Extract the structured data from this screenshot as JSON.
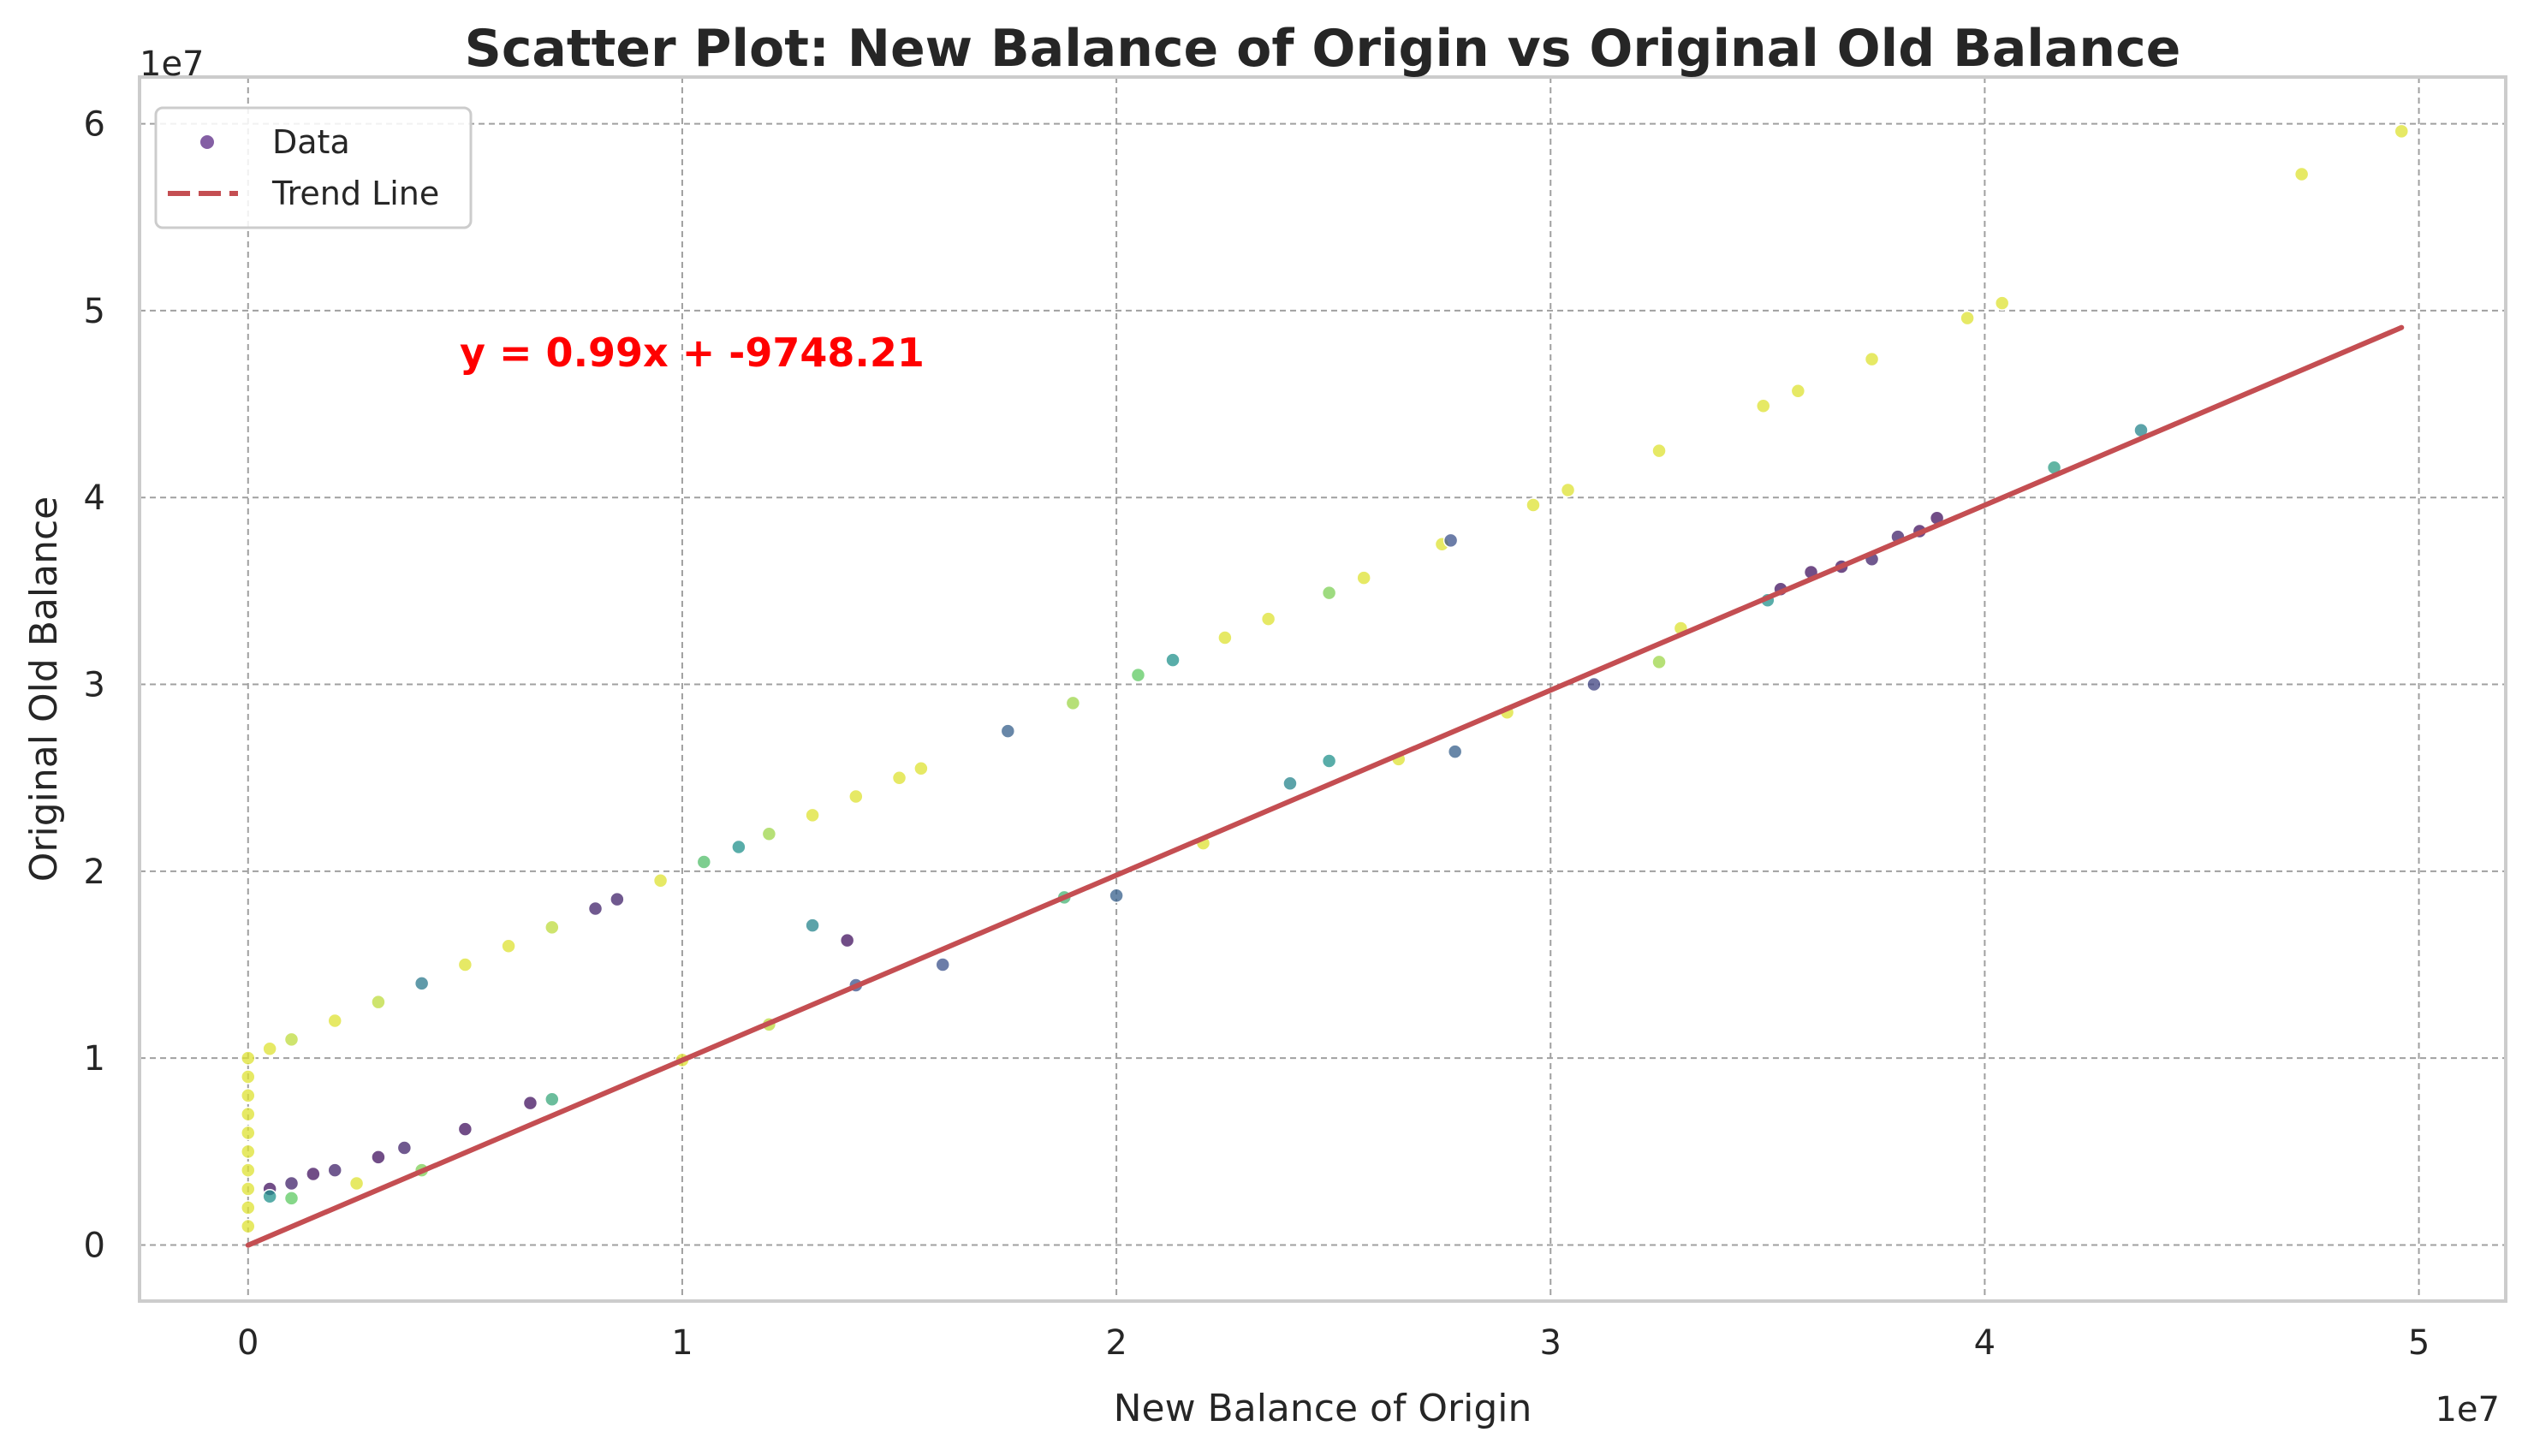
{
  "chart_data": {
    "type": "scatter",
    "title": "Scatter Plot: New Balance of Origin vs Original Old Balance",
    "xlabel": "New Balance of Origin",
    "ylabel": "Original Old Balance",
    "x_offset_text": "1e7",
    "y_offset_text": "1e7",
    "xlim": [
      -2500000,
      52000000
    ],
    "ylim": [
      -3000000,
      62500000
    ],
    "x_ticks": [
      0,
      10000000,
      20000000,
      30000000,
      40000000,
      50000000
    ],
    "x_tick_labels": [
      "0",
      "1",
      "2",
      "3",
      "4",
      "5"
    ],
    "y_ticks": [
      0,
      10000000,
      20000000,
      30000000,
      40000000,
      50000000,
      60000000
    ],
    "y_tick_labels": [
      "0",
      "1",
      "2",
      "3",
      "4",
      "5",
      "6"
    ],
    "grid": true,
    "legend_position": "upper-left",
    "legend": [
      {
        "label": "Data",
        "marker": "circle",
        "color": "#5b2a86"
      },
      {
        "label": "Trend Line",
        "marker": "dashed-line",
        "color": "#c44e52"
      }
    ],
    "annotation": "y = 0.99x + -9748.21",
    "trend_line": {
      "slope": 0.99,
      "intercept": -9748.21,
      "x_range": [
        0,
        49600000
      ],
      "color": "#c44e52"
    },
    "colormap": [
      "#440154",
      "#3b528b",
      "#21918c",
      "#5ec962",
      "#fde725"
    ],
    "series": [
      {
        "name": "Data",
        "points": [
          [
            0,
            10000000,
            0.95
          ],
          [
            0,
            9000000,
            0.95
          ],
          [
            0,
            8000000,
            0.95
          ],
          [
            0,
            7000000,
            0.95
          ],
          [
            0,
            6000000,
            0.95
          ],
          [
            0,
            5000000,
            0.95
          ],
          [
            0,
            4000000,
            0.95
          ],
          [
            0,
            3000000,
            0.95
          ],
          [
            0,
            2000000,
            0.95
          ],
          [
            0,
            1000000,
            0.95
          ],
          [
            500000,
            10500000,
            0.95
          ],
          [
            1000000,
            11000000,
            0.9
          ],
          [
            2000000,
            12000000,
            0.95
          ],
          [
            3000000,
            13000000,
            0.9
          ],
          [
            4000000,
            14000000,
            0.4
          ],
          [
            5000000,
            15000000,
            0.95
          ],
          [
            6000000,
            16000000,
            0.95
          ],
          [
            7000000,
            17000000,
            0.9
          ],
          [
            8000000,
            18000000,
            0.1
          ],
          [
            8500000,
            18500000,
            0.1
          ],
          [
            9500000,
            19500000,
            0.95
          ],
          [
            10500000,
            20500000,
            0.7
          ],
          [
            11300000,
            21300000,
            0.5
          ],
          [
            12000000,
            22000000,
            0.85
          ],
          [
            13000000,
            23000000,
            0.95
          ],
          [
            14000000,
            24000000,
            0.95
          ],
          [
            15000000,
            25000000,
            0.95
          ],
          [
            15500000,
            25500000,
            0.95
          ],
          [
            17500000,
            27500000,
            0.3
          ],
          [
            19000000,
            29000000,
            0.85
          ],
          [
            20500000,
            30500000,
            0.75
          ],
          [
            21300000,
            31300000,
            0.5
          ],
          [
            22500000,
            32500000,
            0.95
          ],
          [
            23500000,
            33500000,
            0.95
          ],
          [
            24900000,
            34900000,
            0.8
          ],
          [
            25700000,
            35700000,
            0.95
          ],
          [
            27500000,
            37500000,
            0.95
          ],
          [
            27700000,
            37700000,
            0.25
          ],
          [
            29600000,
            39600000,
            0.95
          ],
          [
            30400000,
            40400000,
            0.95
          ],
          [
            32500000,
            42500000,
            0.95
          ],
          [
            34900000,
            44900000,
            0.95
          ],
          [
            35700000,
            45700000,
            0.95
          ],
          [
            37400000,
            47400000,
            0.95
          ],
          [
            39600000,
            49600000,
            0.95
          ],
          [
            40400000,
            50400000,
            0.95
          ],
          [
            47300000,
            57300000,
            0.95
          ],
          [
            49600000,
            59600000,
            0.95
          ],
          [
            500000,
            3000000,
            0.05
          ],
          [
            1000000,
            3300000,
            0.1
          ],
          [
            1500000,
            3800000,
            0.05
          ],
          [
            2000000,
            4000000,
            0.1
          ],
          [
            3000000,
            4700000,
            0.05
          ],
          [
            3600000,
            5200000,
            0.1
          ],
          [
            500000,
            2600000,
            0.5
          ],
          [
            1000000,
            2500000,
            0.75
          ],
          [
            2500000,
            3300000,
            0.95
          ],
          [
            4000000,
            4000000,
            0.8
          ],
          [
            5000000,
            6200000,
            0.05
          ],
          [
            6500000,
            7600000,
            0.05
          ],
          [
            7000000,
            7800000,
            0.6
          ],
          [
            13000000,
            17100000,
            0.45
          ],
          [
            13800000,
            16300000,
            0.05
          ],
          [
            10000000,
            9900000,
            0.95
          ],
          [
            12000000,
            11800000,
            0.9
          ],
          [
            14000000,
            13900000,
            0.25
          ],
          [
            16000000,
            15000000,
            0.25
          ],
          [
            18800000,
            18600000,
            0.65
          ],
          [
            20000000,
            18700000,
            0.3
          ],
          [
            22000000,
            21500000,
            0.95
          ],
          [
            24000000,
            24700000,
            0.45
          ],
          [
            24900000,
            25900000,
            0.5
          ],
          [
            26500000,
            26000000,
            0.95
          ],
          [
            27800000,
            26400000,
            0.3
          ],
          [
            29000000,
            28500000,
            0.95
          ],
          [
            31000000,
            30000000,
            0.2
          ],
          [
            32500000,
            31200000,
            0.85
          ],
          [
            33000000,
            33000000,
            0.95
          ],
          [
            35000000,
            34500000,
            0.5
          ],
          [
            35300000,
            35100000,
            0.05
          ],
          [
            36000000,
            36000000,
            0.05
          ],
          [
            36700000,
            36300000,
            0.05
          ],
          [
            37400000,
            36700000,
            0.1
          ],
          [
            38000000,
            37900000,
            0.1
          ],
          [
            38500000,
            38200000,
            0.05
          ],
          [
            38900000,
            38900000,
            0.05
          ],
          [
            41600000,
            41600000,
            0.55
          ],
          [
            43600000,
            43600000,
            0.45
          ]
        ]
      }
    ]
  }
}
